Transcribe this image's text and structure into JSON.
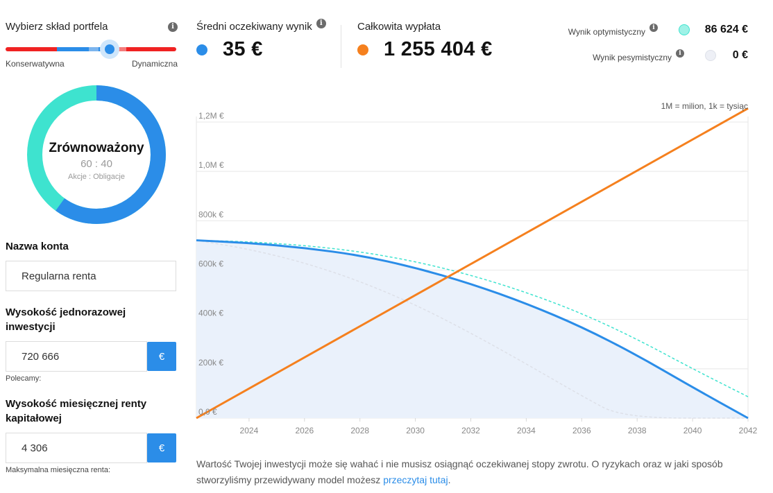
{
  "portfolio": {
    "title": "Wybierz skład portfela",
    "left_label": "Konserwatywna",
    "right_label": "Dynamiczna",
    "slider_position": 0.6
  },
  "donut": {
    "name": "Zrównoważony",
    "ratio": "60 : 40",
    "subtitle": "Akcje : Obligacje",
    "stocks_share": 60,
    "bonds_share": 40,
    "stocks_color": "#2b8de8",
    "bonds_color": "#3ee3cf"
  },
  "account": {
    "label": "Nazwa konta",
    "value": "Regularna renta"
  },
  "lump_sum": {
    "label": "Wysokość jednorazowej inwestycji",
    "value": "720 666",
    "currency": "€",
    "hint": "Polecamy:"
  },
  "monthly": {
    "label": "Wysokość miesięcznej renty kapitałowej",
    "value": "4 306",
    "currency": "€",
    "hint": "Maksymalna miesięczna renta:"
  },
  "stats": {
    "avg_title": "Średni oczekiwany wynik",
    "avg_value": "35 €",
    "total_title": "Całkowita wypłata",
    "total_value": "1 255 404 €",
    "optimistic_label": "Wynik optymistyczny",
    "optimistic_value": "86 624 €",
    "pessimistic_label": "Wynik pesymistyczny",
    "pessimistic_value": "0 €"
  },
  "colors": {
    "accent": "#2b8de8",
    "orange": "#f5801e",
    "teal": "#3ee3cf",
    "pessimistic": "#dde0e8"
  },
  "chart_data": {
    "type": "line",
    "note": "1M = milion, 1k = tysiąc",
    "xlim": [
      2022.1,
      2042
    ],
    "ylim": [
      0,
      1200000
    ],
    "x_ticks": [
      2024,
      2026,
      2028,
      2030,
      2032,
      2034,
      2036,
      2038,
      2040,
      2042
    ],
    "x_tick_labels": [
      "2024",
      "2026",
      "2028",
      "2030",
      "2032",
      "2034",
      "2036",
      "2038",
      "2040",
      "2042"
    ],
    "y_ticks": [
      0,
      200000,
      400000,
      600000,
      800000,
      1000000,
      1200000
    ],
    "y_tick_labels": [
      "0,0 €",
      "200k €",
      "400k €",
      "600k €",
      "800k €",
      "1,0M €",
      "1,2M €"
    ],
    "series": [
      {
        "key": "total_payout",
        "color": "#f5801e",
        "style": "solid",
        "points": [
          [
            2022.1,
            0
          ],
          [
            2042,
            1255404
          ]
        ]
      },
      {
        "key": "average",
        "color": "#2b8de8",
        "style": "solid",
        "fill": true,
        "points": [
          [
            2022.1,
            720666
          ],
          [
            2024,
            710000
          ],
          [
            2026,
            690000
          ],
          [
            2028,
            660000
          ],
          [
            2030,
            610000
          ],
          [
            2032,
            545000
          ],
          [
            2034,
            465000
          ],
          [
            2036,
            370000
          ],
          [
            2038,
            255000
          ],
          [
            2040,
            125000
          ],
          [
            2042,
            0
          ]
        ]
      },
      {
        "key": "optimistic",
        "color": "#3ee3cf",
        "style": "dashed",
        "points": [
          [
            2022.1,
            720666
          ],
          [
            2024,
            715000
          ],
          [
            2026,
            700000
          ],
          [
            2028,
            675000
          ],
          [
            2030,
            635000
          ],
          [
            2032,
            580000
          ],
          [
            2034,
            510000
          ],
          [
            2036,
            425000
          ],
          [
            2038,
            320000
          ],
          [
            2040,
            200000
          ],
          [
            2042,
            86624
          ]
        ]
      },
      {
        "key": "pessimistic",
        "color": "#dde0e8",
        "style": "dashed",
        "points": [
          [
            2022.1,
            720666
          ],
          [
            2024,
            685000
          ],
          [
            2026,
            630000
          ],
          [
            2028,
            555000
          ],
          [
            2030,
            460000
          ],
          [
            2032,
            345000
          ],
          [
            2034,
            220000
          ],
          [
            2036,
            90000
          ],
          [
            2037.5,
            0
          ],
          [
            2042,
            0
          ]
        ]
      }
    ]
  },
  "footer": {
    "text": "Wartość Twojej inwestycji może się wahać i nie musisz osiągnąć oczekiwanej stopy zwrotu. O ryzykach oraz w jaki sposób stworzyliśmy przewidywany model możesz ",
    "link": "przeczytaj tutaj",
    "end": "."
  }
}
